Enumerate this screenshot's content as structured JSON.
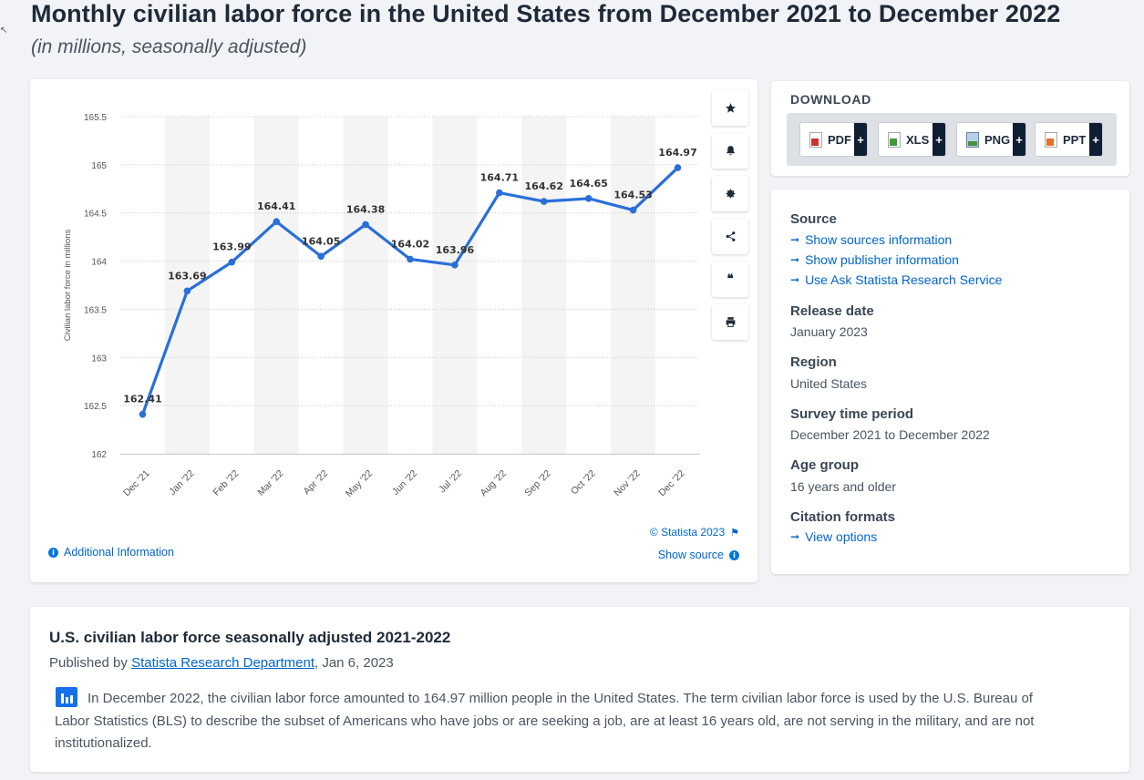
{
  "header": {
    "title": "Monthly civilian labor force in the United States from December 2021 to December 2022",
    "subtitle": "(in millions, seasonally adjusted)"
  },
  "chart_data": {
    "type": "line",
    "categories": [
      "Dec '21",
      "Jan '22",
      "Feb '22",
      "Mar '22",
      "Apr '22",
      "May '22",
      "Jun '22",
      "Jul '22",
      "Aug '22",
      "Sep '22",
      "Oct '22",
      "Nov '22",
      "Dec '22"
    ],
    "values": [
      162.41,
      163.69,
      163.99,
      164.41,
      164.05,
      164.38,
      164.02,
      163.96,
      164.71,
      164.62,
      164.65,
      164.53,
      164.97
    ],
    "data_labels": [
      "162.41",
      "163.69",
      "163.99",
      "164.41",
      "164.05",
      "164.38",
      "164.02",
      "163.96",
      "164.71",
      "164.62",
      "164.65",
      "164.53",
      "164.97"
    ],
    "ylabel": "Civilian labor force in millions",
    "xlabel": "",
    "yticks": [
      "162",
      "162.5",
      "163",
      "163.5",
      "164",
      "164.5",
      "165",
      "165.5"
    ],
    "ylim": [
      162,
      165.5
    ],
    "grid": true,
    "line_color": "#2a6fd8"
  },
  "chart_footer": {
    "additional_info": "Additional Information",
    "copyright": "© Statista 2023",
    "show_source": "Show source"
  },
  "toolbar": {
    "icons": [
      "star-icon",
      "bell-icon",
      "gear-icon",
      "share-icon",
      "quote-icon",
      "print-icon"
    ]
  },
  "download": {
    "title": "DOWNLOAD",
    "buttons": [
      {
        "label": "PDF",
        "icon": "pdf-icon"
      },
      {
        "label": "XLS",
        "icon": "xls-icon"
      },
      {
        "label": "PNG",
        "icon": "png-icon"
      },
      {
        "label": "PPT",
        "icon": "ppt-icon"
      }
    ],
    "plus": "+"
  },
  "meta": {
    "source_head": "Source",
    "source_links": [
      "Show sources information",
      "Show publisher information",
      "Use Ask Statista Research Service"
    ],
    "release_head": "Release date",
    "release_val": "January 2023",
    "region_head": "Region",
    "region_val": "United States",
    "survey_head": "Survey time period",
    "survey_val": "December 2021 to December 2022",
    "age_head": "Age group",
    "age_val": "16 years and older",
    "citation_head": "Citation formats",
    "citation_link": "View options"
  },
  "description": {
    "title": "U.S. civilian labor force seasonally adjusted 2021-2022",
    "published_prefix": "Published by ",
    "publisher": "Statista Research Department",
    "published_suffix": ", Jan 6, 2023",
    "body": "In December 2022, the civilian labor force amounted to 164.97 million people in the United States. The term civilian labor force is used by the U.S. Bureau of Labor Statistics (BLS) to describe the subset of Americans who have jobs or are seeking a job, are at least 16 years old, are not serving in the military, and are not institutionalized."
  },
  "colors": {
    "accent": "#0066cc",
    "line": "#2a6fd8",
    "dark": "#0f1e33"
  }
}
